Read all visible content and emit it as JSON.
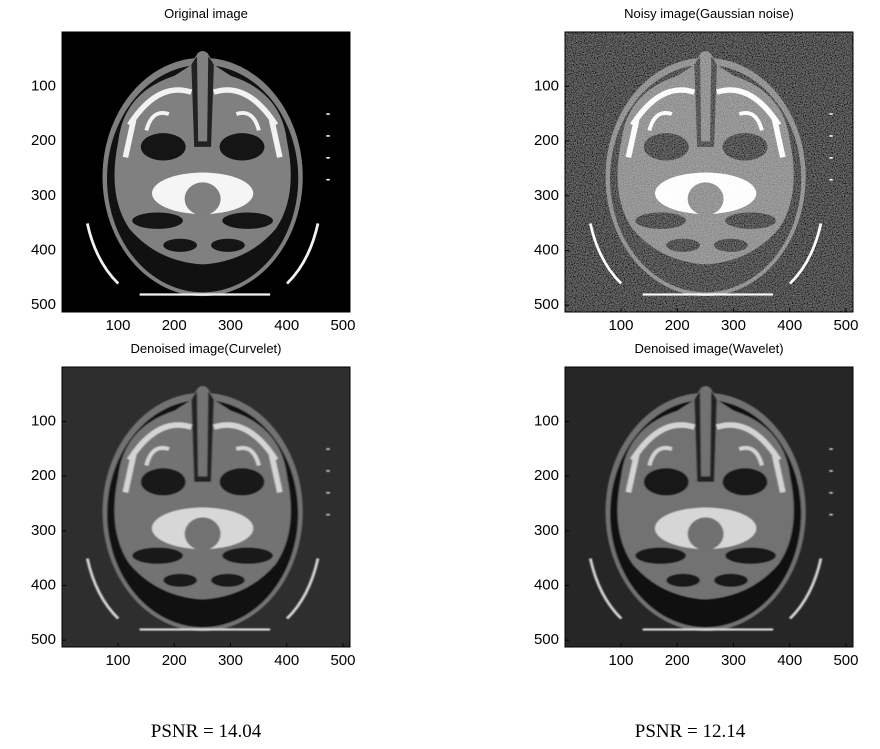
{
  "panels": [
    {
      "title": "Original image",
      "xlim": [
        0.5,
        512.5
      ],
      "ylim": [
        0.5,
        512.5
      ],
      "xticks": [
        100,
        200,
        300,
        400,
        500
      ],
      "yticks": [
        100,
        200,
        300,
        400,
        500
      ]
    },
    {
      "title": "Noisy image(Gaussian noise)",
      "xlim": [
        0.5,
        512.5
      ],
      "ylim": [
        0.5,
        512.5
      ],
      "xticks": [
        100,
        200,
        300,
        400,
        500
      ],
      "yticks": [
        100,
        200,
        300,
        400,
        500
      ]
    },
    {
      "title": "Denoised image(Curvelet)",
      "xlim": [
        0.5,
        512.5
      ],
      "ylim": [
        0.5,
        512.5
      ],
      "xticks": [
        100,
        200,
        300,
        400,
        500
      ],
      "yticks": [
        100,
        200,
        300,
        400,
        500
      ]
    },
    {
      "title": "Denoised image(Wavelet)",
      "xlim": [
        0.5,
        512.5
      ],
      "ylim": [
        0.5,
        512.5
      ],
      "xticks": [
        100,
        200,
        300,
        400,
        500
      ],
      "yticks": [
        100,
        200,
        300,
        400,
        500
      ]
    }
  ],
  "captions": [
    "PSNR = 14.04",
    "PSNR = 12.14"
  ]
}
